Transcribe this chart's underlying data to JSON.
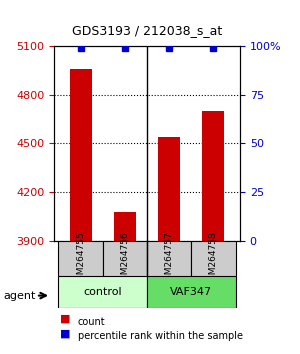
{
  "title": "GDS3193 / 212038_s_at",
  "samples": [
    "GSM264755",
    "GSM264756",
    "GSM264757",
    "GSM264758"
  ],
  "counts": [
    4960,
    4080,
    4540,
    4700
  ],
  "percentile_ranks": [
    99,
    99,
    99,
    99
  ],
  "groups": [
    "control",
    "control",
    "VAF347",
    "VAF347"
  ],
  "group_colors": [
    "#90EE90",
    "#90EE90",
    "#00CC00",
    "#00CC00"
  ],
  "group_label_colors": [
    "#90EE90",
    "#00CC00"
  ],
  "group_names": [
    "control",
    "VAF347"
  ],
  "ylim_left": [
    3900,
    5100
  ],
  "ylim_right": [
    0,
    100
  ],
  "yticks_left": [
    3900,
    4200,
    4500,
    4800,
    5100
  ],
  "yticks_right": [
    0,
    25,
    50,
    75,
    100
  ],
  "ytick_labels_right": [
    "0",
    "25",
    "50",
    "75",
    "100%"
  ],
  "bar_color": "#CC0000",
  "dot_color": "#0000CC",
  "bar_width": 0.5,
  "background_color": "#ffffff",
  "plot_bg_color": "#ffffff",
  "grid_color": "#000000",
  "sample_box_color": "#cccccc"
}
